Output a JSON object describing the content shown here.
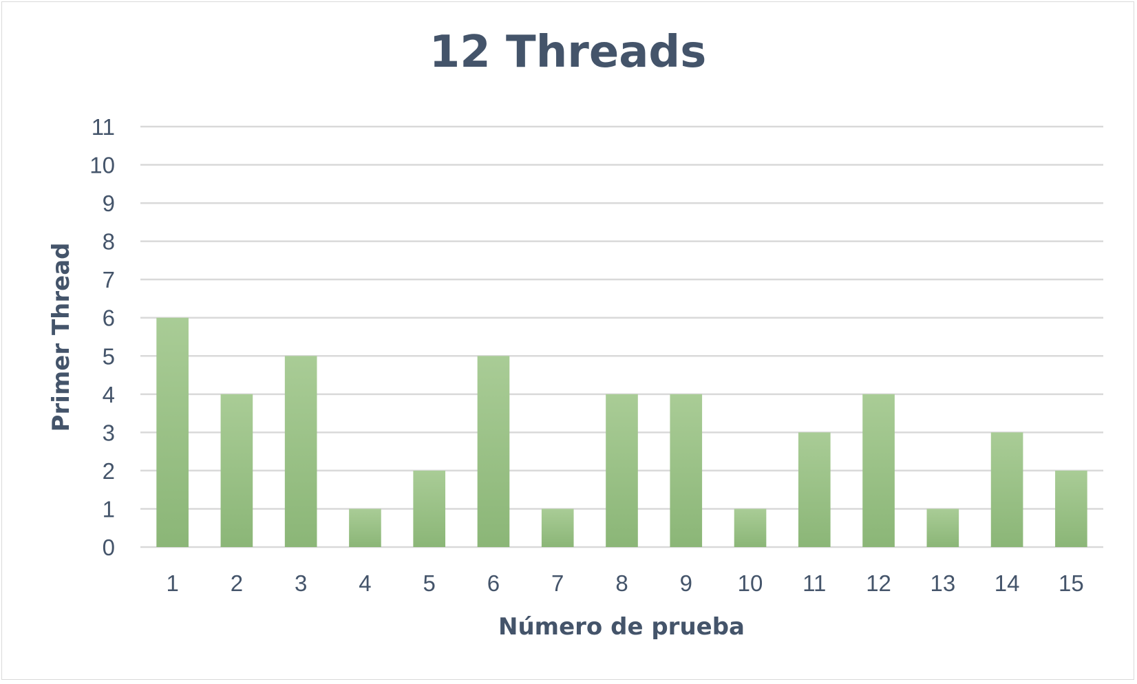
{
  "chart_data": {
    "type": "bar",
    "title": "12 Threads",
    "xlabel": "Número de prueba",
    "ylabel": "Primer Thread",
    "categories": [
      "1",
      "2",
      "3",
      "4",
      "5",
      "6",
      "7",
      "8",
      "9",
      "10",
      "11",
      "12",
      "13",
      "14",
      "15"
    ],
    "values": [
      6,
      4,
      5,
      1,
      2,
      5,
      1,
      4,
      4,
      1,
      3,
      4,
      1,
      3,
      2
    ],
    "yticks": [
      "0",
      "1",
      "2",
      "3",
      "4",
      "5",
      "6",
      "7",
      "8",
      "9",
      "10",
      "11"
    ],
    "ylim": [
      0,
      11
    ],
    "grid": true,
    "legend": "none",
    "colors": {
      "bar_top": "#a9cc96",
      "bar_bottom": "#8bb677",
      "grid": "#d9d9d9",
      "text": "#44546a"
    }
  }
}
